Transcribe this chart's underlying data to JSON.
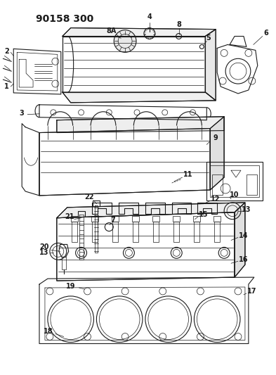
{
  "title": "90158 300",
  "bg_color": "#ffffff",
  "line_color": "#1a1a1a",
  "title_fontsize": 10,
  "label_fontsize": 7,
  "fig_width": 3.93,
  "fig_height": 5.33,
  "dpi": 100
}
